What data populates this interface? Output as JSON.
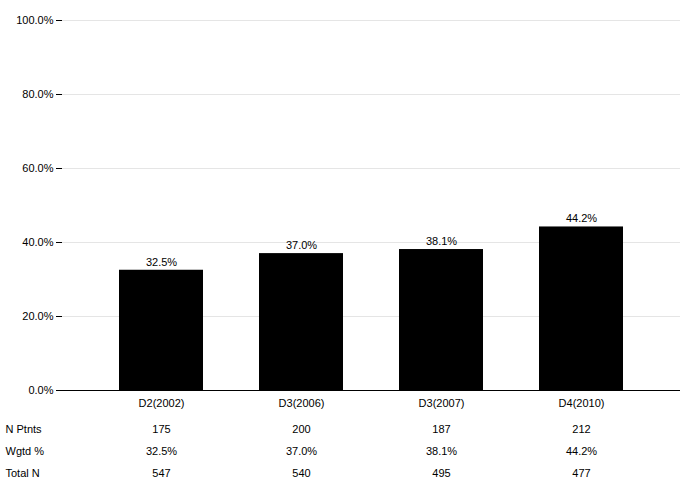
{
  "chart_data": {
    "type": "bar",
    "categories": [
      "D2(2002)",
      "D3(2006)",
      "D3(2007)",
      "D4(2010)"
    ],
    "values": [
      32.5,
      37.0,
      38.1,
      44.2
    ],
    "value_labels": [
      "32.5%",
      "37.0%",
      "38.1%",
      "44.2%"
    ],
    "data_labels": true,
    "ylim": [
      0,
      100
    ],
    "yticks": [
      {
        "value": 0,
        "label": "0.0%"
      },
      {
        "value": 20,
        "label": "20.0%"
      },
      {
        "value": 40,
        "label": "40.0%"
      },
      {
        "value": 60,
        "label": "60.0%"
      },
      {
        "value": 80,
        "label": "80.0%"
      },
      {
        "value": 100,
        "label": "100.0%"
      }
    ],
    "grid": true,
    "table": [
      {
        "label": "N Ptnts",
        "values": [
          175,
          200,
          187,
          212
        ]
      },
      {
        "label": "Wgtd %",
        "values": [
          32.5,
          37.0,
          38.1,
          44.2
        ],
        "value_labels": [
          "32.5%",
          "37.0%",
          "38.1%",
          "44.2%"
        ]
      },
      {
        "label": "Total N",
        "values": [
          547,
          540,
          495,
          477
        ]
      }
    ]
  }
}
